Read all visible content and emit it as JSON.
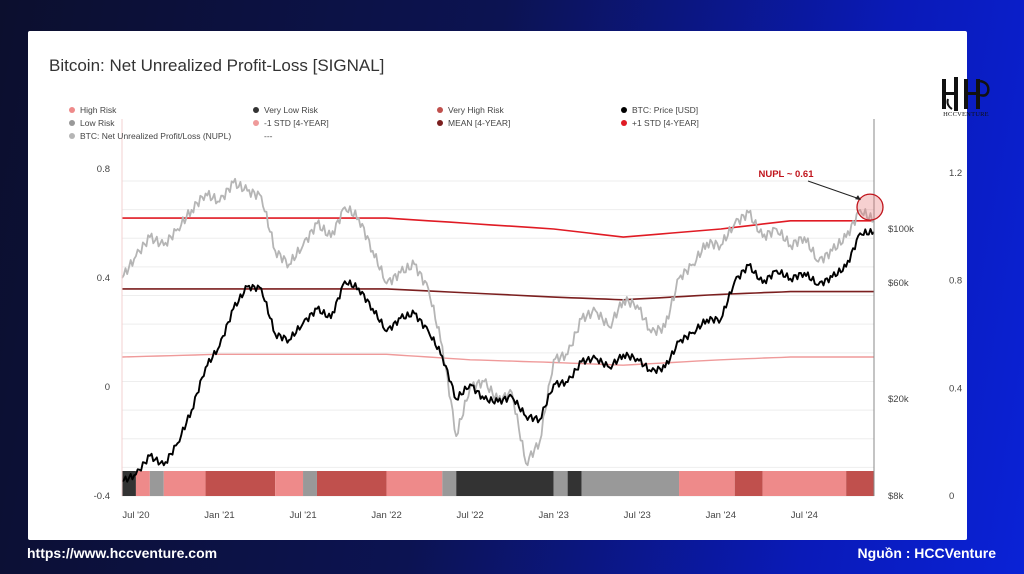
{
  "title": "Bitcoin: Net Unrealized Profit-Loss [SIGNAL]",
  "logo": {
    "caption": "HCCVENTURE",
    "icon": "hcc-monogram-icon"
  },
  "footer": {
    "website": "https://www.hccventure.com",
    "source": "Nguồn : HCCVenture"
  },
  "chart_data": {
    "type": "line",
    "title": "Bitcoin: Net Unrealized Profit-Loss [SIGNAL]",
    "x_ticks": [
      "Jul '20",
      "Jan '21",
      "Jul '21",
      "Jan '22",
      "Jul '22",
      "Jan '23",
      "Jul '23",
      "Jan '24",
      "Jul '24"
    ],
    "x_range": [
      "2020-06",
      "2024-12"
    ],
    "y_left": {
      "ticks": [
        "0.8",
        "0.4",
        "0",
        "-0.4"
      ],
      "range": [
        -0.4,
        0.8
      ]
    },
    "y_right_price": {
      "ticks": [
        "$100k",
        "$60k",
        "$20k",
        "$8k"
      ],
      "scale": "log",
      "range": [
        8000,
        100000
      ]
    },
    "y_right_nupl": {
      "ticks": [
        "1.2",
        "0.8",
        "0.4",
        "0"
      ],
      "range": [
        0,
        1.2
      ]
    },
    "grid": true,
    "legend": [
      {
        "name": "High Risk",
        "color": "#ee8a8a",
        "marker": "dot"
      },
      {
        "name": "Very Low Risk",
        "color": "#333333",
        "marker": "dot"
      },
      {
        "name": "Very High Risk",
        "color": "#c0504d",
        "marker": "dot"
      },
      {
        "name": "BTC: Price [USD]",
        "color": "#000000",
        "marker": "dot"
      },
      {
        "name": "Low Risk",
        "color": "#999999",
        "marker": "dot"
      },
      {
        "name": "-1 STD [4-YEAR]",
        "color": "#ef9a9a",
        "marker": "dot"
      },
      {
        "name": "MEAN [4-YEAR]",
        "color": "#7b1f1f",
        "marker": "dot"
      },
      {
        "name": "+1 STD [4-YEAR]",
        "color": "#e01b24",
        "marker": "dot"
      },
      {
        "name": "BTC: Net Unrealized Profit/Loss (NUPL)",
        "color": "#b5b5b5",
        "marker": "dot"
      },
      {
        "name": "---",
        "color": "",
        "marker": "none"
      }
    ],
    "annotation": {
      "text": "NUPL ~ 0.61",
      "color": "#c0141c"
    },
    "series": [
      {
        "name": "BTC: Price [USD]",
        "axis": "price",
        "color": "#000000",
        "points": [
          [
            "2020-06",
            9200
          ],
          [
            "2020-07",
            9800
          ],
          [
            "2020-08",
            11700
          ],
          [
            "2020-09",
            10700
          ],
          [
            "2020-10",
            13200
          ],
          [
            "2020-11",
            18000
          ],
          [
            "2020-12",
            27000
          ],
          [
            "2021-01",
            33000
          ],
          [
            "2021-02",
            47000
          ],
          [
            "2021-03",
            58000
          ],
          [
            "2021-04",
            57000
          ],
          [
            "2021-05",
            37000
          ],
          [
            "2021-06",
            35000
          ],
          [
            "2021-07",
            41000
          ],
          [
            "2021-08",
            47000
          ],
          [
            "2021-09",
            43000
          ],
          [
            "2021-10",
            61000
          ],
          [
            "2021-11",
            57000
          ],
          [
            "2021-12",
            47000
          ],
          [
            "2022-01",
            38000
          ],
          [
            "2022-02",
            43000
          ],
          [
            "2022-03",
            45000
          ],
          [
            "2022-04",
            38000
          ],
          [
            "2022-05",
            30000
          ],
          [
            "2022-06",
            20000
          ],
          [
            "2022-07",
            23000
          ],
          [
            "2022-08",
            20000
          ],
          [
            "2022-09",
            19500
          ],
          [
            "2022-10",
            20500
          ],
          [
            "2022-11",
            17000
          ],
          [
            "2022-12",
            16500
          ],
          [
            "2023-01",
            23000
          ],
          [
            "2023-02",
            23500
          ],
          [
            "2023-03",
            28500
          ],
          [
            "2023-04",
            29500
          ],
          [
            "2023-05",
            27000
          ],
          [
            "2023-06",
            30500
          ],
          [
            "2023-07",
            29300
          ],
          [
            "2023-08",
            26000
          ],
          [
            "2023-09",
            27000
          ],
          [
            "2023-10",
            34500
          ],
          [
            "2023-11",
            37500
          ],
          [
            "2023-12",
            42500
          ],
          [
            "2024-01",
            42500
          ],
          [
            "2024-02",
            61000
          ],
          [
            "2024-03",
            71000
          ],
          [
            "2024-04",
            60000
          ],
          [
            "2024-05",
            67500
          ],
          [
            "2024-06",
            62500
          ],
          [
            "2024-07",
            66000
          ],
          [
            "2024-08",
            59000
          ],
          [
            "2024-09",
            63500
          ],
          [
            "2024-10",
            70000
          ],
          [
            "2024-11",
            96000
          ],
          [
            "2024-12",
            97000
          ]
        ]
      },
      {
        "name": "BTC: Net Unrealized Profit/Loss (NUPL)",
        "axis": "nupl",
        "color": "#b5b5b5",
        "points": [
          [
            "2020-06",
            0.4
          ],
          [
            "2020-07",
            0.48
          ],
          [
            "2020-08",
            0.55
          ],
          [
            "2020-09",
            0.52
          ],
          [
            "2020-10",
            0.58
          ],
          [
            "2020-11",
            0.65
          ],
          [
            "2020-12",
            0.71
          ],
          [
            "2021-01",
            0.68
          ],
          [
            "2021-02",
            0.75
          ],
          [
            "2021-03",
            0.72
          ],
          [
            "2021-04",
            0.7
          ],
          [
            "2021-05",
            0.5
          ],
          [
            "2021-06",
            0.45
          ],
          [
            "2021-07",
            0.52
          ],
          [
            "2021-08",
            0.6
          ],
          [
            "2021-09",
            0.55
          ],
          [
            "2021-10",
            0.66
          ],
          [
            "2021-11",
            0.62
          ],
          [
            "2021-12",
            0.5
          ],
          [
            "2022-01",
            0.38
          ],
          [
            "2022-02",
            0.42
          ],
          [
            "2022-03",
            0.45
          ],
          [
            "2022-04",
            0.36
          ],
          [
            "2022-05",
            0.15
          ],
          [
            "2022-06",
            -0.18
          ],
          [
            "2022-07",
            0.0
          ],
          [
            "2022-08",
            0.02
          ],
          [
            "2022-09",
            -0.05
          ],
          [
            "2022-10",
            -0.02
          ],
          [
            "2022-11",
            -0.28
          ],
          [
            "2022-12",
            -0.2
          ],
          [
            "2023-01",
            0.1
          ],
          [
            "2023-02",
            0.12
          ],
          [
            "2023-03",
            0.25
          ],
          [
            "2023-04",
            0.28
          ],
          [
            "2023-05",
            0.22
          ],
          [
            "2023-06",
            0.32
          ],
          [
            "2023-07",
            0.3
          ],
          [
            "2023-08",
            0.2
          ],
          [
            "2023-09",
            0.22
          ],
          [
            "2023-10",
            0.4
          ],
          [
            "2023-11",
            0.45
          ],
          [
            "2023-12",
            0.53
          ],
          [
            "2024-01",
            0.52
          ],
          [
            "2024-02",
            0.6
          ],
          [
            "2024-03",
            0.64
          ],
          [
            "2024-04",
            0.55
          ],
          [
            "2024-05",
            0.58
          ],
          [
            "2024-06",
            0.52
          ],
          [
            "2024-07",
            0.55
          ],
          [
            "2024-08",
            0.46
          ],
          [
            "2024-09",
            0.5
          ],
          [
            "2024-10",
            0.55
          ],
          [
            "2024-11",
            0.65
          ],
          [
            "2024-12",
            0.61
          ]
        ]
      },
      {
        "name": "+1 STD [4-YEAR]",
        "axis": "nupl",
        "color": "#e01b24",
        "points": [
          [
            "2020-06",
            0.62
          ],
          [
            "2021-01",
            0.62
          ],
          [
            "2022-01",
            0.62
          ],
          [
            "2023-01",
            0.58
          ],
          [
            "2023-06",
            0.55
          ],
          [
            "2024-01",
            0.58
          ],
          [
            "2024-06",
            0.61
          ],
          [
            "2024-12",
            0.61
          ]
        ]
      },
      {
        "name": "MEAN [4-YEAR]",
        "axis": "nupl",
        "color": "#7b1f1f",
        "points": [
          [
            "2020-06",
            0.36
          ],
          [
            "2021-01",
            0.36
          ],
          [
            "2022-01",
            0.36
          ],
          [
            "2023-01",
            0.33
          ],
          [
            "2023-06",
            0.32
          ],
          [
            "2024-01",
            0.34
          ],
          [
            "2024-06",
            0.35
          ],
          [
            "2024-12",
            0.35
          ]
        ]
      },
      {
        "name": "-1 STD [4-YEAR]",
        "axis": "nupl",
        "color": "#ef9a9a",
        "points": [
          [
            "2020-06",
            0.11
          ],
          [
            "2021-01",
            0.12
          ],
          [
            "2022-01",
            0.12
          ],
          [
            "2022-07",
            0.1
          ],
          [
            "2023-01",
            0.09
          ],
          [
            "2023-06",
            0.08
          ],
          [
            "2024-01",
            0.1
          ],
          [
            "2024-06",
            0.11
          ],
          [
            "2024-12",
            0.11
          ]
        ]
      }
    ],
    "risk_band": [
      {
        "from": "2020-06",
        "to": "2020-07",
        "level": "Very Low Risk"
      },
      {
        "from": "2020-07",
        "to": "2020-08",
        "level": "High Risk"
      },
      {
        "from": "2020-08",
        "to": "2020-09",
        "level": "Low Risk"
      },
      {
        "from": "2020-09",
        "to": "2020-12",
        "level": "High Risk"
      },
      {
        "from": "2020-12",
        "to": "2021-05",
        "level": "Very High Risk"
      },
      {
        "from": "2021-05",
        "to": "2021-07",
        "level": "High Risk"
      },
      {
        "from": "2021-07",
        "to": "2021-08",
        "level": "Low Risk"
      },
      {
        "from": "2021-08",
        "to": "2022-01",
        "level": "Very High Risk"
      },
      {
        "from": "2022-01",
        "to": "2022-05",
        "level": "High Risk"
      },
      {
        "from": "2022-05",
        "to": "2022-06",
        "level": "Low Risk"
      },
      {
        "from": "2022-06",
        "to": "2023-01",
        "level": "Very Low Risk"
      },
      {
        "from": "2023-01",
        "to": "2023-02",
        "level": "Low Risk"
      },
      {
        "from": "2023-02",
        "to": "2023-03",
        "level": "Very Low Risk"
      },
      {
        "from": "2023-03",
        "to": "2023-10",
        "level": "Low Risk"
      },
      {
        "from": "2023-10",
        "to": "2024-02",
        "level": "High Risk"
      },
      {
        "from": "2024-02",
        "to": "2024-04",
        "level": "Very High Risk"
      },
      {
        "from": "2024-04",
        "to": "2024-10",
        "level": "High Risk"
      },
      {
        "from": "2024-10",
        "to": "2024-12",
        "level": "Very High Risk"
      }
    ]
  }
}
